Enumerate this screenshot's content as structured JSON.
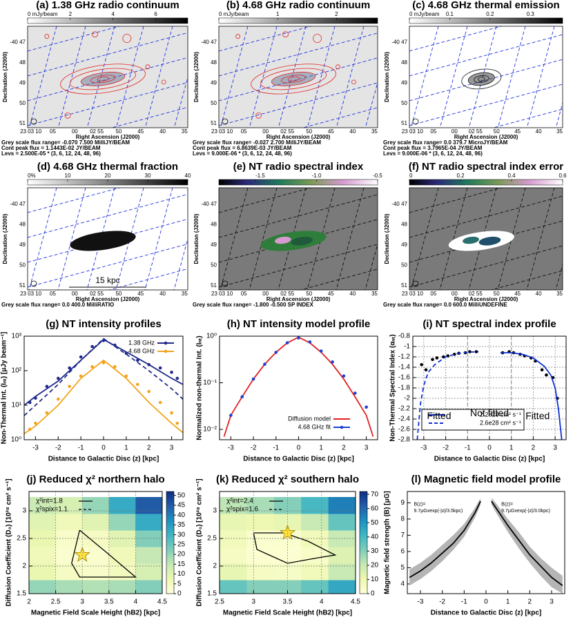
{
  "chart_data": [
    {
      "type": "map",
      "title": "(a) 1.38 GHz radio continuum",
      "colormap": "grey",
      "background": "#e4e4e4",
      "grid_color": "#2233dd",
      "contour_color": "#e0261f",
      "blob_color": "#6a7a9a",
      "cbar_lim": [
        0,
        7.5
      ],
      "cbar_ticks": [
        {
          "value": 0,
          "label": "0 mJy/beam"
        },
        2,
        4,
        6
      ],
      "ylabel": "Declination (J2000)",
      "xlabel": "Right Ascension (J2000)",
      "yticklabels": [
        "-40 47",
        "48",
        "49",
        "50",
        "51"
      ],
      "xticklabels": [
        "23 03 10",
        "05",
        "00",
        "02 55",
        "50",
        "45",
        "40",
        "35"
      ],
      "footer": [
        "Grey scale flux range= -0.070 7.500 MilliJY/BEAM",
        "Cont peak flux = 1.1443E-02 JY/BEAM",
        "Levs = 2.500E-05 * (3, 6, 12, 24, 48, 96)"
      ]
    },
    {
      "type": "map",
      "title": "(b) 4.68 GHz radio continuum",
      "colormap": "grey",
      "background": "#e4e4e4",
      "grid_color": "#2233dd",
      "contour_color": "#e0261f",
      "blob_color": "#6a7a9a",
      "cbar_lim": [
        0,
        2.7
      ],
      "cbar_ticks": [
        {
          "value": 0,
          "label": "0 mJy/beam"
        },
        1,
        2
      ],
      "ylabel": "Declination (J2000)",
      "xlabel": "Right Ascension (J2000)",
      "yticklabels": [
        "-40 47",
        "48",
        "49",
        "50",
        "51"
      ],
      "xticklabels": [
        "23 03 10",
        "05",
        "00",
        "02 55",
        "50",
        "45",
        "40",
        "35"
      ],
      "footer": [
        "Grey scale flux range= -0.027 2.700 MilliJY/BEAM",
        "Cont peak flux = 6.8639E-03 JY/BEAM",
        "Levs = 9.000E-06 * (3, 6, 12, 24, 48, 96)"
      ]
    },
    {
      "type": "map",
      "title": "(c) 4.68 GHz thermal emission",
      "colormap": "grey",
      "background": "#ffffff",
      "grid_color": "#2233dd",
      "contour_color": "#111111",
      "blob_color": "#333333",
      "cbar_lim": [
        0,
        0.38
      ],
      "cbar_ticks": [
        {
          "value": 0,
          "label": "0 mJy/beam"
        },
        0.1,
        0.2,
        0.3
      ],
      "ylabel": "Declination (J2000)",
      "xlabel": "Right Ascension (J2000)",
      "yticklabels": [
        "-40 47",
        "48",
        "49",
        "50",
        "51"
      ],
      "xticklabels": [
        "23 03 10",
        "05",
        "00",
        "02 55",
        "50",
        "45",
        "40",
        "35"
      ],
      "footer": [
        "Grey scale flux range= 0.0 379.7 MicroJY/BEAM",
        "Cont peak flux = 3.7965E-04 JY/BEAM",
        "Levs = 9.000E-06 * (3, 6, 12, 24, 48, 96)"
      ]
    },
    {
      "type": "map",
      "title": "(d) 4.68 GHz thermal fraction",
      "colormap": "grey",
      "background": "#ffffff",
      "grid_color": "#2233dd",
      "contour_color": null,
      "blob_color": "#111111",
      "cbar_lim": [
        0,
        40
      ],
      "cbar_ticks": [
        {
          "value": 0,
          "label": "0%"
        },
        10,
        20,
        30,
        40
      ],
      "ylabel": "Declination (J2000)",
      "xlabel": "Right Ascension (J2000)",
      "yticklabels": [
        "-40 47",
        "48",
        "49",
        "50",
        "51"
      ],
      "xticklabels": [
        "23 03 10",
        "05",
        "00",
        "02 55",
        "50",
        "45",
        "40",
        "35"
      ],
      "scale_bar": "15 kpc",
      "footer": [
        "Grey scale flux range= 0.0 400.0 MilliRATIO"
      ]
    },
    {
      "type": "map",
      "title": "(e) NT radio spectral index",
      "colormap": "spectral",
      "background": "#7a7a7a",
      "grid_color": "#111111",
      "contour_color": null,
      "blob_color": "#2f7d3a",
      "cbar_lim": [
        -1.8,
        -0.5
      ],
      "cbar_ticks": [
        -1.5,
        {
          "value": -1,
          "label": "-1.0"
        },
        -0.5
      ],
      "ylabel": "Declination (J2000)",
      "xlabel": "Right Ascension (J2000)",
      "yticklabels": [
        "-40 47",
        "48",
        "49",
        "50",
        "51"
      ],
      "xticklabels": [
        "23 03 10",
        "05",
        "00",
        "02 55",
        "50",
        "45",
        "40",
        "35"
      ],
      "footer": [
        "Grey scale flux range= -1.800 -0.500 SP INDEX"
      ]
    },
    {
      "type": "map",
      "title": "(f) NT radio spectral index error",
      "colormap": "spectral",
      "background": "#7a7a7a",
      "grid_color": "#111111",
      "contour_color": null,
      "blob_color": "#ffffff",
      "cbar_lim": [
        0,
        0.6
      ],
      "cbar_ticks": [
        0,
        0.2,
        0.4,
        0.6
      ],
      "ylabel": "Declination (J2000)",
      "xlabel": "Right Ascension (J2000)",
      "yticklabels": [
        "-40 47",
        "48",
        "49",
        "50",
        "51"
      ],
      "xticklabels": [
        "23 03 10",
        "05",
        "00",
        "02 55",
        "50",
        "45",
        "40",
        "35"
      ],
      "footer": [
        "Grey scale flux range= 0.0 600.0 MilliUNDEFINE"
      ]
    },
    {
      "type": "line",
      "title": "(g) NT intensity profiles",
      "xlabel": "Distance to Galactic Disc (z) [kpc]",
      "ylabel": "Non-Thermal Int. (Iₙₜ) [μJy beam⁻¹]",
      "xlim": [
        -3.5,
        3.5
      ],
      "xticks": [
        -3,
        -2,
        -1,
        0,
        1,
        2,
        3
      ],
      "log_y": true,
      "ylim": [
        1,
        1000
      ],
      "yticks": [
        {
          "value": 1,
          "label": "10⁰"
        },
        {
          "value": 10,
          "label": "10¹"
        },
        {
          "value": 100,
          "label": "10²"
        },
        {
          "value": 1000,
          "label": "10³"
        }
      ],
      "grid": false,
      "legend": "upper right",
      "series": [
        {
          "color": "#1f2a8a",
          "style": "line",
          "x": [
            -3.5,
            -3,
            -2,
            -1,
            0,
            1,
            2,
            3,
            3.5
          ],
          "values": [
            10,
            18,
            50,
            200,
            800,
            350,
            150,
            60,
            40
          ]
        },
        {
          "color": "#1f2a8a",
          "style": "dashed",
          "x": [
            -3.5,
            -3,
            -2,
            -1,
            0,
            1,
            2,
            3,
            3.5
          ],
          "values": [
            5,
            10,
            40,
            200,
            850,
            300,
            100,
            30,
            15
          ]
        },
        {
          "color": "#f2a31b",
          "style": "line",
          "x": [
            -3.5,
            -3,
            -2,
            -1,
            0,
            1,
            2,
            3,
            3.5
          ],
          "values": [
            1.5,
            2.5,
            10,
            60,
            200,
            60,
            12,
            3,
            1.6
          ]
        },
        {
          "name": "1.38 GHz",
          "color": "#1f2a8a",
          "style": "points",
          "x": [
            -3.25,
            -3,
            -2.5,
            -2,
            -1.5,
            -1,
            -0.5,
            0,
            0.5,
            1,
            1.5,
            2,
            2.5,
            3,
            3.25
          ],
          "values": [
            12,
            16,
            35,
            60,
            120,
            250,
            500,
            750,
            550,
            320,
            200,
            150,
            120,
            90,
            60
          ]
        },
        {
          "name": "4.68 GHz",
          "color": "#f2a31b",
          "style": "points",
          "x": [
            -3.25,
            -3,
            -2.5,
            -2,
            -1.5,
            -1,
            -0.5,
            0,
            0.5,
            1,
            1.5,
            2,
            2.5,
            3,
            3.25
          ],
          "values": [
            2,
            3,
            6,
            15,
            35,
            70,
            130,
            170,
            130,
            70,
            40,
            25,
            12,
            6,
            3
          ]
        }
      ]
    },
    {
      "type": "line",
      "title": "(h) NT intensity model profile",
      "xlabel": "Distance to Galactic Disc (z) [kpc]",
      "ylabel": "Normalized non-thermal Int. (Iₙₜ)",
      "xlim": [
        -3.5,
        3.5
      ],
      "xticks": [
        -3,
        -2,
        -1,
        0,
        1,
        2,
        3
      ],
      "log_y": true,
      "ylim": [
        0.006,
        1
      ],
      "yticks": [
        {
          "value": 0.01,
          "label": "10⁻²"
        },
        {
          "value": 0.1,
          "label": "10⁻¹"
        },
        {
          "value": 1,
          "label": "10⁰"
        }
      ],
      "grid": false,
      "legend": "lower right",
      "series": [
        {
          "name": "Diffusion model",
          "color": "#e02020",
          "style": "line",
          "x": [
            -3.3,
            -3,
            -2.5,
            -2,
            -1.5,
            -1,
            -0.5,
            0,
            0.5,
            1,
            1.5,
            2,
            2.5,
            3,
            3.3
          ],
          "values": [
            0.007,
            0.02,
            0.05,
            0.12,
            0.25,
            0.45,
            0.72,
            0.95,
            0.72,
            0.45,
            0.25,
            0.12,
            0.05,
            0.02,
            0.007
          ]
        },
        {
          "name": "4.68 GHz fit",
          "color": "#1a3fd6",
          "style": "points",
          "x": [
            -3,
            -2.5,
            -2,
            -1.5,
            -1,
            -0.5,
            0,
            0.5,
            1,
            1.5,
            2,
            2.5,
            3
          ],
          "values": [
            0.02,
            0.05,
            0.12,
            0.25,
            0.45,
            0.72,
            0.92,
            0.75,
            0.48,
            0.28,
            0.14,
            0.06,
            0.03
          ]
        }
      ]
    },
    {
      "type": "line",
      "title": "(i) NT spectral index profile",
      "xlabel": "Distance to Galactic Disc (z) [kpc]",
      "ylabel": "Non-Thermal Spectral Index (αₙₜ)",
      "xlim": [
        -3.5,
        3.5
      ],
      "xticks": [
        -3,
        -2,
        -1,
        0,
        1,
        2,
        3
      ],
      "log_y": false,
      "ylim": [
        -2.8,
        -0.8
      ],
      "yticks": [
        -2.8,
        -2.6,
        -2.4,
        -2.2,
        -2,
        -1.8,
        -1.6,
        -1.4,
        -1.2,
        -1,
        -0.8
      ],
      "grid": true,
      "legend": "lower center",
      "vlines": [
        -1,
        1
      ],
      "annotations": [
        "Fitted",
        "Not fitted",
        "Fitted"
      ],
      "series": [
        {
          "color": "#000000",
          "style": "points",
          "x": [
            -3.1,
            -2.9,
            -2.6,
            -2.4,
            -2.1,
            -1.9,
            -1.6,
            -1.4,
            -1.1,
            -0.9,
            -0.6,
            0.6,
            0.9,
            1.1,
            1.4,
            1.6,
            1.9,
            2.1,
            2.4,
            2.6,
            2.9,
            3.1
          ],
          "values": [
            -1.35,
            -1.45,
            -1.25,
            -1.22,
            -1.2,
            -1.18,
            -1.15,
            -1.13,
            -1.12,
            -1.1,
            -1.1,
            -1.12,
            -1.1,
            -1.12,
            -1.15,
            -1.18,
            -1.22,
            -1.28,
            -1.45,
            -1.55,
            -1.6,
            -2
          ]
        },
        {
          "name": "2.2e28 cm² s⁻¹",
          "color": "#1030d0",
          "style": "line",
          "x": [
            0.5,
            1,
            1.5,
            2,
            2.5,
            2.8,
            3,
            3.15,
            3.3
          ],
          "values": [
            -1.12,
            -1.12,
            -1.15,
            -1.22,
            -1.38,
            -1.55,
            -1.8,
            -2.2,
            -2.8
          ]
        },
        {
          "name": "2.6e28 cm² s⁻¹",
          "color": "#1030d0",
          "style": "dashed",
          "x": [
            -3.3,
            -3.15,
            -3,
            -2.8,
            -2.5,
            -2,
            -1.5,
            -1,
            -0.5
          ],
          "values": [
            -2.8,
            -2.1,
            -1.75,
            -1.5,
            -1.35,
            -1.2,
            -1.14,
            -1.11,
            -1.1
          ]
        }
      ]
    },
    {
      "type": "heatmap",
      "title": "(j) Reduced χ² northern halo",
      "xlabel": "Magnetic Field Scale Height (hB2) [kpc]",
      "ylabel": "Diffusion Coefficient (D₀) [10²⁸ cm² s⁻¹]",
      "xlim": [
        2,
        4.5
      ],
      "xticks": [
        2,
        2.5,
        3,
        3.5,
        4,
        4.5
      ],
      "ylim": [
        1.5,
        3.35
      ],
      "yticks": [
        1.5,
        2,
        2.5,
        3
      ],
      "grid": true,
      "x": [
        2.25,
        2.75,
        3.25,
        3.75,
        4.25
      ],
      "y": [
        1.6,
        1.9,
        2.2,
        2.5,
        2.8,
        3.1
      ],
      "z": [
        [
          20,
          18,
          17,
          18,
          22
        ],
        [
          8,
          4,
          3,
          5,
          12
        ],
        [
          6,
          2,
          2,
          6,
          15
        ],
        [
          8,
          3,
          4,
          10,
          22
        ],
        [
          10,
          6,
          10,
          20,
          32
        ],
        [
          14,
          12,
          20,
          32,
          45
        ]
      ],
      "zlim": [
        0,
        52
      ],
      "zticks": [
        0,
        5,
        10,
        15,
        20,
        25,
        30,
        35,
        40,
        45,
        50
      ],
      "colormap": [
        "#ffffd9",
        "#edf8b1",
        "#c7e9b4",
        "#7fcdbb",
        "#41b6c4",
        "#1d91c0",
        "#225ea8",
        "#0c2c84"
      ],
      "contour": {
        "x": [
          2.95,
          3.45,
          4,
          2.95,
          2.8,
          2.95
        ],
        "y": [
          2.65,
          2.25,
          1.8,
          1.8,
          2.05,
          2.65
        ]
      },
      "best_fit": [
        3,
        2.2
      ],
      "star_color": "#ffe23a",
      "legend": [
        "χ²int=1.8",
        "χ²spix=1.1"
      ]
    },
    {
      "type": "heatmap",
      "title": "(k) Reduced χ² southern halo",
      "xlabel": "Magnetic Field Scale Height (hB2) [kpc]",
      "ylabel": "Diffusion Coefficient (D₀) [10²⁸ cm² s⁻¹]",
      "xlim": [
        2.5,
        4.5
      ],
      "xticks": [
        2.5,
        3,
        3.5,
        4,
        4.5
      ],
      "ylim": [
        1.5,
        3.35
      ],
      "yticks": [
        1.5,
        2,
        2.5,
        3
      ],
      "grid": true,
      "x": [
        2.7,
        3.1,
        3.5,
        3.9,
        4.3
      ],
      "y": [
        1.6,
        1.9,
        2.2,
        2.5,
        2.8,
        3.1
      ],
      "z": [
        [
          35,
          30,
          30,
          35,
          45
        ],
        [
          12,
          6,
          5,
          8,
          20
        ],
        [
          6,
          2,
          2,
          4,
          15
        ],
        [
          8,
          3,
          3,
          8,
          20
        ],
        [
          12,
          10,
          12,
          20,
          35
        ],
        [
          22,
          25,
          30,
          40,
          55
        ]
      ],
      "zlim": [
        0,
        72
      ],
      "zticks": [
        0,
        10,
        20,
        30,
        40,
        50,
        60,
        70
      ],
      "colormap": [
        "#ffffd9",
        "#edf8b1",
        "#c7e9b4",
        "#7fcdbb",
        "#41b6c4",
        "#1d91c0",
        "#225ea8",
        "#0c2c84"
      ],
      "contour": {
        "x": [
          3,
          3.45,
          3.8,
          4.2,
          3.95,
          3.5,
          3.05,
          3
        ],
        "y": [
          2.6,
          2.6,
          2.45,
          2.2,
          2.15,
          2.05,
          2.3,
          2.6
        ]
      },
      "best_fit": [
        3.5,
        2.6
      ],
      "star_color": "#ffe23a",
      "legend": [
        "χ²int=2.4",
        "χ²spix=1.6"
      ]
    },
    {
      "type": "line",
      "title": "(l) Magnetic field model profile",
      "xlabel": "Distance to Galactic Disc (z) [kpc]",
      "ylabel": "Magnetic field strength (B) [μG]",
      "xlim": [
        -3.6,
        3.6
      ],
      "xticks": [
        -3,
        -2,
        -1,
        0,
        1,
        2,
        3
      ],
      "log_y": false,
      "ylim": [
        3.4,
        9.7
      ],
      "yticks": [
        4,
        5,
        6,
        7,
        8,
        9
      ],
      "grid": false,
      "legend": null,
      "annotations": [
        "B(z)=",
        "9.7μGxexp(-|z|/3.5kpc)",
        "B(z)=",
        "9.7μGxexp(-|z|/3.0kpc)"
      ],
      "series": [
        {
          "color": "#000000",
          "band_color": "#b5b5b5",
          "style": "line",
          "x": [
            -3.5,
            -3,
            -2.5,
            -2,
            -1.5,
            -1,
            -0.5,
            -0.25
          ],
          "values": [
            4.4,
            4.8,
            5.3,
            5.9,
            6.5,
            7.3,
            8.4,
            9.1
          ],
          "band_low": [
            3.9,
            4.3,
            4.8,
            5.4,
            6.1,
            6.9,
            8.1,
            8.9
          ],
          "band_high": [
            4.9,
            5.3,
            5.8,
            6.4,
            7,
            7.7,
            8.7,
            9.3
          ]
        },
        {
          "color": "#000000",
          "band_color": "#b5b5b5",
          "style": "line",
          "x": [
            0.25,
            0.5,
            1,
            1.5,
            2,
            2.5,
            3,
            3.5
          ],
          "values": [
            9.1,
            8.6,
            7.6,
            6.7,
            5.8,
            5.1,
            4.4,
            3.9
          ],
          "band_low": [
            8.9,
            8.3,
            7.2,
            6.2,
            5.3,
            4.5,
            3.8,
            3.4
          ],
          "band_high": [
            9.3,
            8.9,
            8,
            7.2,
            6.3,
            5.6,
            5,
            4.5
          ]
        }
      ]
    }
  ]
}
